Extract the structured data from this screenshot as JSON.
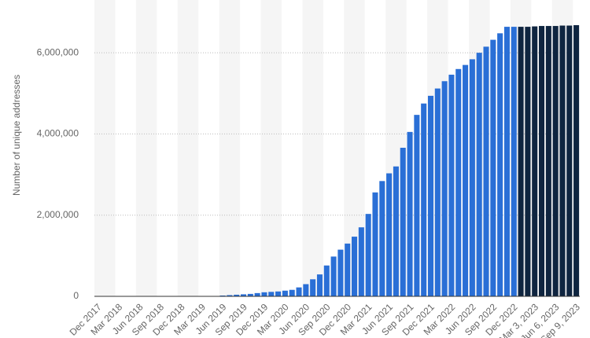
{
  "chart_data": {
    "type": "bar",
    "y_axis_label": "Number of unique addresses",
    "categories": [
      "Dec 2017",
      null,
      null,
      "Mar 2018",
      null,
      null,
      "Jun 2018",
      null,
      null,
      "Sep 2018",
      null,
      null,
      "Dec 2018",
      null,
      null,
      "Mar 2019",
      null,
      null,
      "Jun 2019",
      null,
      null,
      "Sep 2019",
      null,
      null,
      "Dec 2019",
      null,
      null,
      "Mar 2020",
      null,
      null,
      "Jun 2020",
      null,
      null,
      "Sep 2020",
      null,
      null,
      "Dec 2020",
      null,
      null,
      "Mar 2021",
      null,
      null,
      "Jun 2021",
      null,
      null,
      "Sep 2021",
      null,
      null,
      "Dec 2021",
      null,
      null,
      "Mar 2022",
      null,
      null,
      "Jun 2022",
      null,
      null,
      "Sep 2022",
      null,
      null,
      "Dec 2022",
      null,
      null,
      "Mar 3, 2023",
      null,
      null,
      "Jun 6, 2023",
      null,
      null,
      "Sep 9, 2023"
    ],
    "series": [
      {
        "color": "#2a6fd6",
        "values": [
          0,
          0,
          0,
          0,
          0,
          0,
          0,
          0,
          0,
          0,
          0,
          0,
          0,
          0,
          0,
          0,
          0,
          0,
          20000,
          30000,
          40000,
          50000,
          60000,
          80000,
          100000,
          110000,
          120000,
          140000,
          160000,
          220000,
          300000,
          420000,
          540000,
          760000,
          980000,
          1150000,
          1300000,
          1470000,
          1700000,
          2030000,
          2560000,
          2840000,
          3030000,
          3200000,
          3660000,
          4050000,
          4470000,
          4750000,
          4940000,
          5120000,
          5300000,
          5460000,
          5600000,
          5700000,
          5840000,
          6000000,
          6150000,
          6320000,
          6480000,
          6640000,
          6640000,
          null,
          null,
          null,
          null,
          null,
          null,
          null,
          null,
          null
        ]
      },
      {
        "color": "#0f2540",
        "values": [
          null,
          null,
          null,
          null,
          null,
          null,
          null,
          null,
          null,
          null,
          null,
          null,
          null,
          null,
          null,
          null,
          null,
          null,
          null,
          null,
          null,
          null,
          null,
          null,
          null,
          null,
          null,
          null,
          null,
          null,
          null,
          null,
          null,
          null,
          null,
          null,
          null,
          null,
          null,
          null,
          null,
          null,
          null,
          null,
          null,
          null,
          null,
          null,
          null,
          null,
          null,
          null,
          null,
          null,
          null,
          null,
          null,
          null,
          null,
          null,
          null,
          6640000,
          6640000,
          6650000,
          6660000,
          6660000,
          6660000,
          6670000,
          6670000,
          6680000
        ]
      }
    ],
    "ylim": [
      0,
      7300000
    ],
    "yticks": [
      0,
      {
        "value": 2000000,
        "label": "2,000,000"
      },
      {
        "value": 4000000,
        "label": "4,000,000"
      },
      {
        "value": 6000000,
        "label": "6,000,000"
      }
    ],
    "grid": true
  }
}
